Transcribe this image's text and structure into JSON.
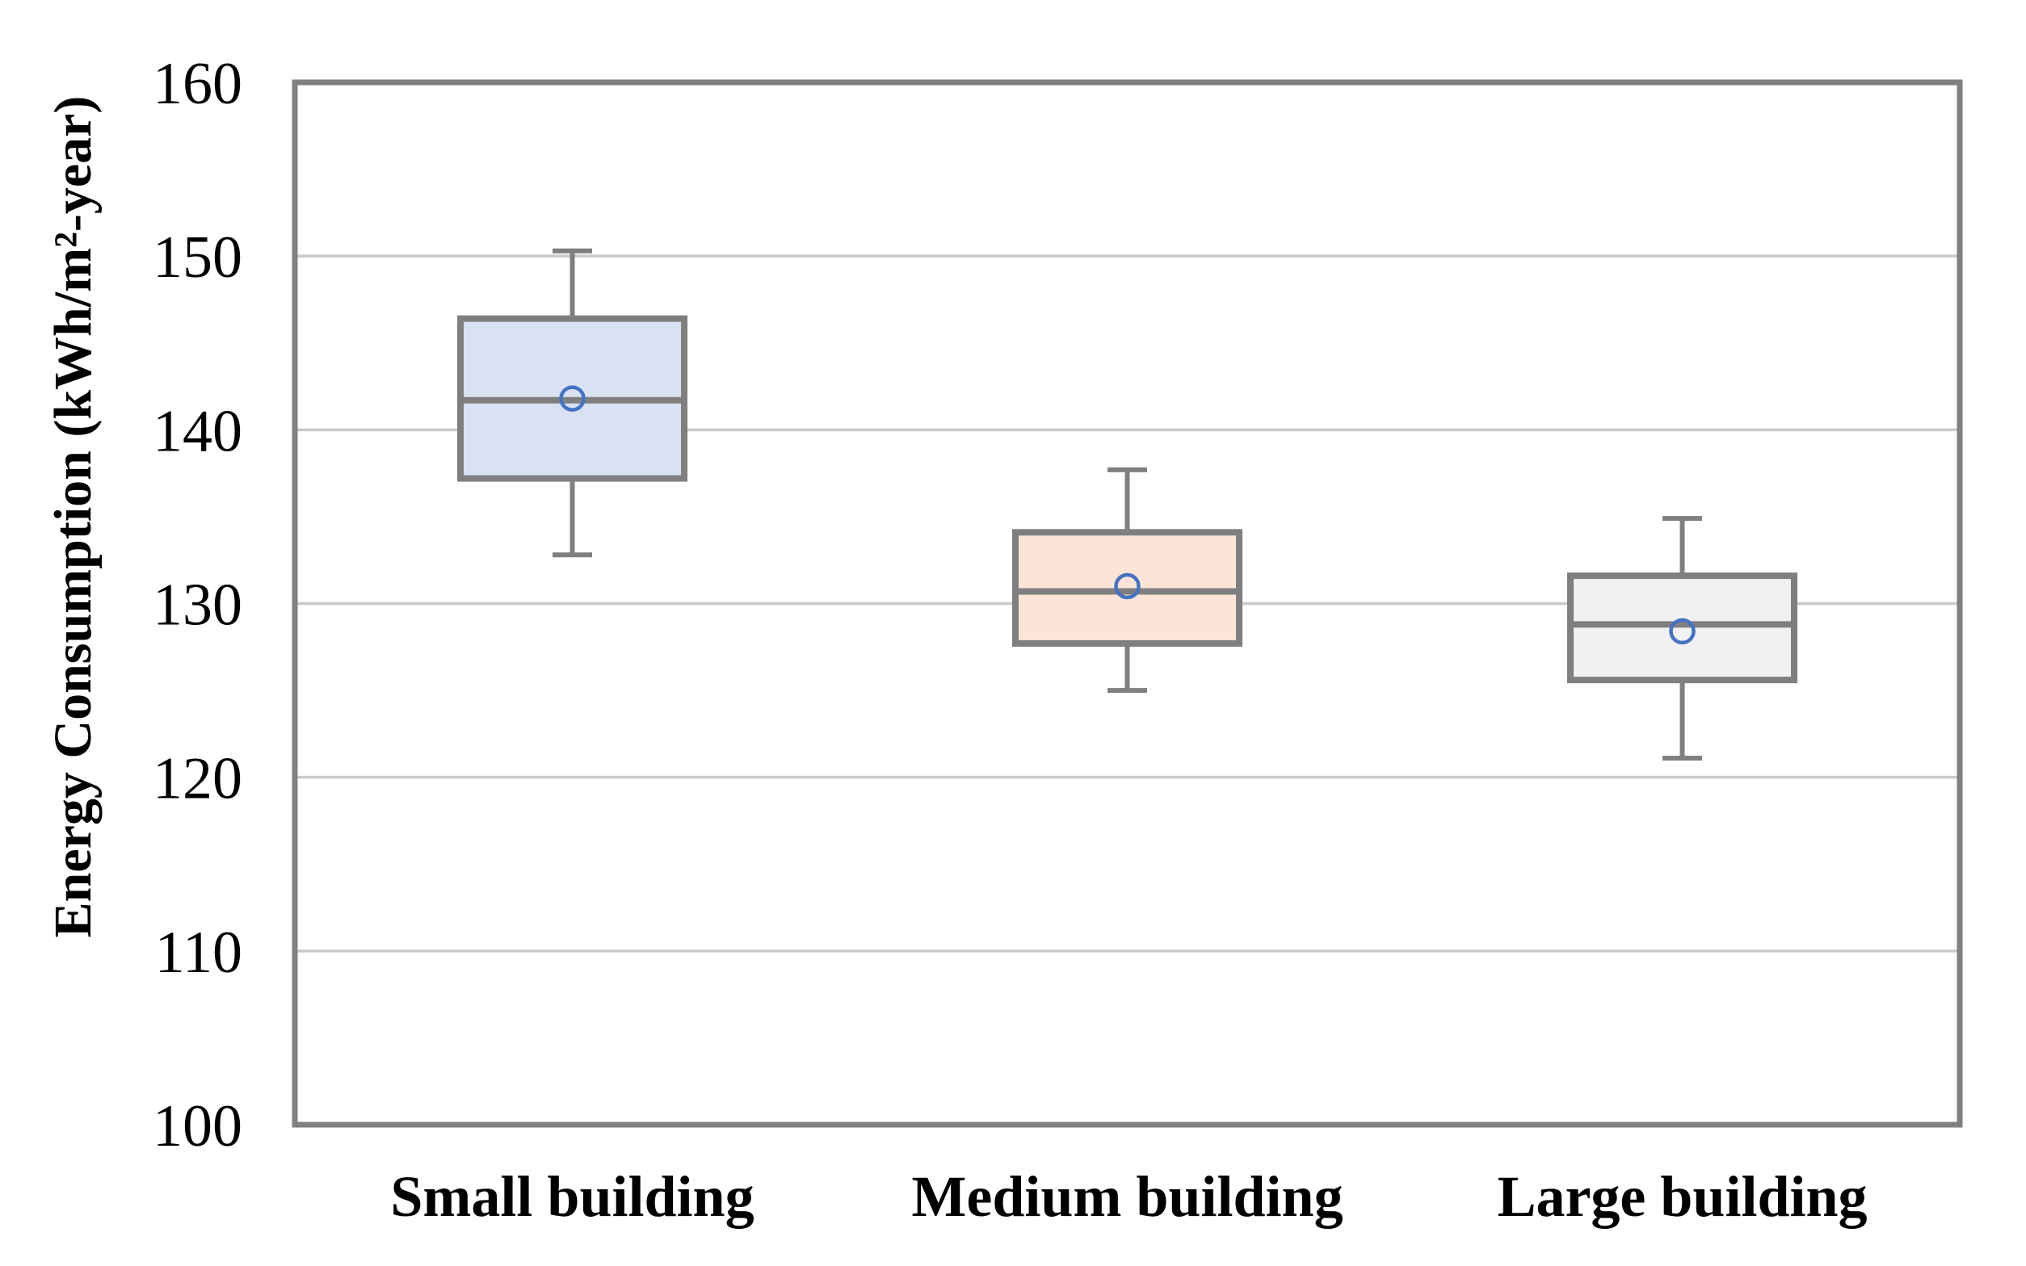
{
  "page": {
    "background": "#ffffff"
  },
  "chart_data": {
    "type": "boxplot",
    "title": "",
    "xlabel": "",
    "ylabel": "Energy Consumption (kWh/m²-year)",
    "categories": [
      "Small building",
      "Medium building",
      "Large building"
    ],
    "series": [
      {
        "name": "Small building",
        "whisker_low": 132.8,
        "q1": 137.2,
        "median": 141.7,
        "mean": 141.8,
        "q3": 146.4,
        "whisker_high": 150.3,
        "fill": "#d9e2f3"
      },
      {
        "name": "Medium building",
        "whisker_low": 125.0,
        "q1": 127.7,
        "median": 130.7,
        "mean": 131.0,
        "q3": 134.1,
        "whisker_high": 137.7,
        "fill": "#fce4d6"
      },
      {
        "name": "Large building",
        "whisker_low": 121.1,
        "q1": 125.6,
        "median": 128.8,
        "mean": 128.4,
        "q3": 131.6,
        "whisker_high": 134.9,
        "fill": "#f1f1f1"
      }
    ],
    "ylim": [
      100,
      160
    ],
    "yticks": [
      100,
      110,
      120,
      130,
      140,
      150,
      160
    ],
    "ytick_step": 10,
    "grid": true,
    "legend": false,
    "colors": {
      "box_border": "#7f7f7f",
      "whisker": "#7f7f7f",
      "median_line": "#7f7f7f",
      "mean_marker": "#4472c4",
      "gridline": "#c9c9c9",
      "frame": "#808080",
      "text": "#000000"
    }
  }
}
